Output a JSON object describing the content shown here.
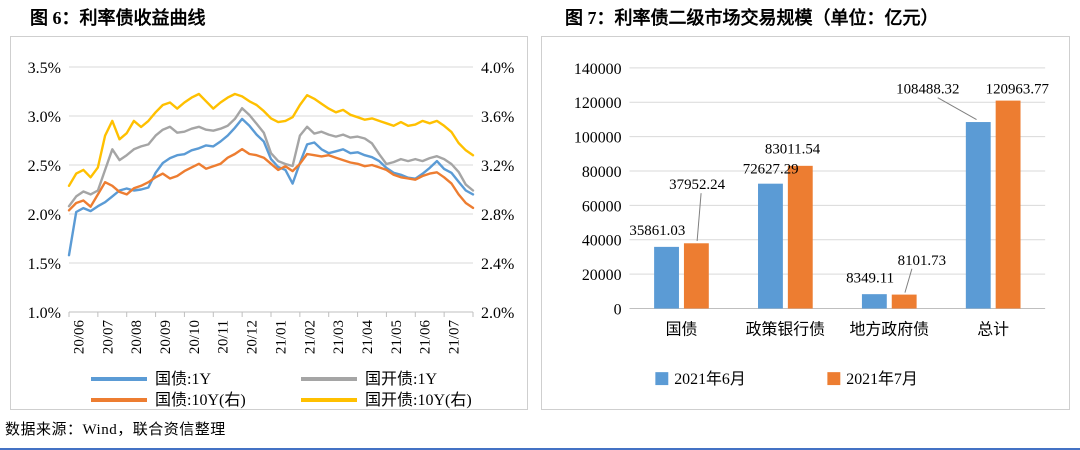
{
  "source": "数据来源：Wind，联合资信整理",
  "chart_data": [
    {
      "type": "line",
      "title": "图 6：利率债收益曲线",
      "x_tick_labels": [
        "20/06",
        "20/07",
        "20/08",
        "20/09",
        "20/10",
        "20/11",
        "20/12",
        "21/01",
        "21/02",
        "21/03",
        "21/04",
        "21/05",
        "21/06",
        "21/07"
      ],
      "axis_left": {
        "ticks": [
          "3.5%",
          "3.0%",
          "2.5%",
          "2.0%",
          "1.5%",
          "1.0%"
        ],
        "max": 3.5,
        "min": 1.0
      },
      "axis_right": {
        "ticks": [
          "4.0%",
          "3.6%",
          "3.2%",
          "2.8%",
          "2.4%",
          "2.0%"
        ],
        "max": 4.0,
        "min": 2.0
      },
      "grid": true,
      "legend_position": "bottom",
      "series": [
        {
          "name": "国债:1Y",
          "color": "#5B9BD5",
          "axis": "left",
          "values": [
            1.58,
            2.02,
            2.06,
            2.03,
            2.08,
            2.12,
            2.18,
            2.24,
            2.26,
            2.24,
            2.25,
            2.27,
            2.42,
            2.52,
            2.57,
            2.6,
            2.61,
            2.65,
            2.67,
            2.7,
            2.69,
            2.74,
            2.8,
            2.88,
            2.97,
            2.9,
            2.81,
            2.74,
            2.56,
            2.48,
            2.45,
            2.31,
            2.52,
            2.71,
            2.73,
            2.66,
            2.62,
            2.64,
            2.66,
            2.62,
            2.63,
            2.6,
            2.58,
            2.54,
            2.47,
            2.42,
            2.4,
            2.37,
            2.36,
            2.41,
            2.47,
            2.54,
            2.46,
            2.42,
            2.33,
            2.24,
            2.2
          ]
        },
        {
          "name": "国债:10Y(右)",
          "color": "#ED7D31",
          "axis": "right",
          "values": [
            2.83,
            2.89,
            2.91,
            2.86,
            2.96,
            3.06,
            3.03,
            2.98,
            2.96,
            3.01,
            3.03,
            3.06,
            3.1,
            3.13,
            3.09,
            3.11,
            3.15,
            3.18,
            3.21,
            3.17,
            3.19,
            3.21,
            3.26,
            3.29,
            3.33,
            3.29,
            3.28,
            3.26,
            3.21,
            3.16,
            3.19,
            3.15,
            3.21,
            3.29,
            3.28,
            3.27,
            3.28,
            3.26,
            3.24,
            3.22,
            3.21,
            3.19,
            3.2,
            3.18,
            3.16,
            3.12,
            3.1,
            3.09,
            3.08,
            3.11,
            3.13,
            3.14,
            3.1,
            3.05,
            2.96,
            2.89,
            2.85
          ]
        },
        {
          "name": "国开债:1Y",
          "color": "#A5A5A5",
          "axis": "left",
          "values": [
            2.08,
            2.18,
            2.23,
            2.2,
            2.24,
            2.45,
            2.66,
            2.55,
            2.6,
            2.66,
            2.69,
            2.71,
            2.8,
            2.86,
            2.89,
            2.83,
            2.84,
            2.87,
            2.89,
            2.86,
            2.85,
            2.87,
            2.9,
            2.97,
            3.08,
            3.01,
            2.92,
            2.83,
            2.62,
            2.54,
            2.51,
            2.49,
            2.8,
            2.89,
            2.82,
            2.84,
            2.81,
            2.79,
            2.81,
            2.78,
            2.79,
            2.77,
            2.72,
            2.61,
            2.51,
            2.53,
            2.56,
            2.54,
            2.56,
            2.54,
            2.57,
            2.59,
            2.56,
            2.51,
            2.43,
            2.3,
            2.24
          ]
        },
        {
          "name": "国开债:10Y(右)",
          "color": "#FFC000",
          "axis": "right",
          "values": [
            3.03,
            3.13,
            3.16,
            3.1,
            3.18,
            3.44,
            3.56,
            3.41,
            3.46,
            3.56,
            3.51,
            3.56,
            3.63,
            3.69,
            3.71,
            3.66,
            3.71,
            3.75,
            3.78,
            3.72,
            3.66,
            3.71,
            3.75,
            3.78,
            3.76,
            3.72,
            3.69,
            3.64,
            3.58,
            3.55,
            3.56,
            3.59,
            3.69,
            3.77,
            3.74,
            3.7,
            3.66,
            3.63,
            3.65,
            3.61,
            3.59,
            3.57,
            3.58,
            3.56,
            3.54,
            3.52,
            3.55,
            3.52,
            3.53,
            3.56,
            3.54,
            3.56,
            3.52,
            3.47,
            3.38,
            3.32,
            3.28
          ]
        }
      ]
    },
    {
      "type": "bar",
      "title": "图 7：利率债二级市场交易规模（单位：亿元）",
      "categories": [
        "国债",
        "政策银行债",
        "地方政府债",
        "总计"
      ],
      "y_ticks": [
        "0",
        "20000",
        "40000",
        "60000",
        "80000",
        "100000",
        "120000",
        "140000"
      ],
      "ylim": [
        0,
        140000
      ],
      "grid": true,
      "legend_position": "bottom",
      "series": [
        {
          "name": "2021年6月",
          "color": "#5B9BD5",
          "values": [
            35861.03,
            72627.29,
            8349.11,
            108488.32
          ]
        },
        {
          "name": "2021年7月",
          "color": "#ED7D31",
          "values": [
            37952.24,
            83011.54,
            8101.73,
            120963.77
          ]
        }
      ]
    }
  ]
}
